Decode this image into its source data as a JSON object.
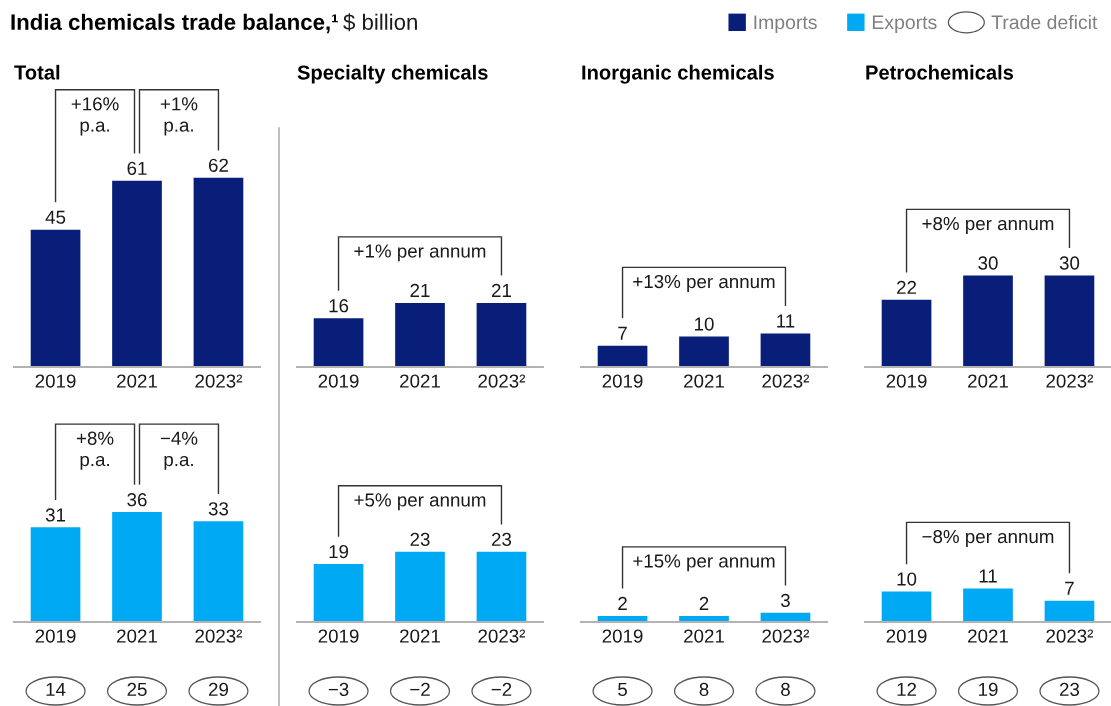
{
  "chart_data": [
    {
      "type": "other",
      "title": "India chemicals trade balance,¹",
      "subtitle": "$ billion"
    },
    {
      "type": "bar",
      "title": "Total",
      "categories": [
        "2019",
        "2021",
        "2023²"
      ],
      "series": [
        {
          "name": "Imports",
          "color": "#081e78",
          "values": [
            45,
            61,
            62
          ]
        }
      ],
      "data_labels": true,
      "legend": "top right",
      "annotations": [
        "+16%\np.a.",
        "+1%\np.a."
      ]
    },
    {
      "type": "bar",
      "title": "Specialty chemicals",
      "categories": [
        "2019",
        "2021",
        "2023²"
      ],
      "series": [
        {
          "color": "#081e78",
          "values": [
            16,
            21,
            21
          ]
        }
      ],
      "data_labels": true,
      "annotations": [
        "+1% per annum"
      ]
    },
    {
      "type": "bar",
      "title": "Inorganic chemicals",
      "categories": [
        "2019",
        "2021",
        "2023²"
      ],
      "series": [
        {
          "color": "#081e78",
          "values": [
            7,
            10,
            11
          ]
        }
      ],
      "data_labels": true,
      "annotations": [
        "+13% per annum"
      ]
    },
    {
      "type": "bar",
      "title": "Petrochemicals",
      "categories": [
        "2019",
        "2021",
        "2023²"
      ],
      "series": [
        {
          "color": "#081e78",
          "values": [
            22,
            30,
            30
          ]
        }
      ],
      "data_labels": true,
      "annotations": [
        "+8% per annum"
      ]
    },
    {
      "type": "bar",
      "categories": [
        "2019",
        "2021",
        "2023²"
      ],
      "series": [
        {
          "name": "Exports",
          "color": "#00a9f4",
          "values": [
            31,
            36,
            33
          ]
        }
      ],
      "data_labels": true,
      "legend": "top right",
      "annotations": [
        "+8%\np.a.",
        "−4%\np.a."
      ]
    },
    {
      "type": "bar",
      "categories": [
        "2019",
        "2021",
        "2023²"
      ],
      "series": [
        {
          "color": "#00a9f4",
          "values": [
            19,
            23,
            23
          ]
        }
      ],
      "data_labels": true,
      "annotations": [
        "+5% per annum"
      ]
    },
    {
      "type": "bar",
      "categories": [
        "2019",
        "2021",
        "2023²"
      ],
      "series": [
        {
          "color": "#00a9f4",
          "values": [
            2,
            2,
            3
          ]
        }
      ],
      "data_labels": true,
      "annotations": [
        "+15% per annum"
      ]
    },
    {
      "type": "bar",
      "categories": [
        "2019",
        "2021",
        "2023²"
      ],
      "series": [
        {
          "color": "#00a9f4",
          "values": [
            10,
            11,
            7
          ]
        }
      ],
      "data_labels": true,
      "annotations": [
        "−8% per annum"
      ]
    },
    {
      "type": "other",
      "categories": [
        null,
        null,
        null
      ],
      "series": [
        {
          "name": "Trade deficit",
          "values": [
            14,
            25,
            29
          ]
        }
      ],
      "data_labels": true,
      "legend": "top right"
    },
    {
      "type": "other",
      "categories": [
        null,
        null,
        null
      ],
      "series": [
        {
          "values": [
            -3,
            -2,
            -2
          ]
        }
      ],
      "data_labels": true
    },
    {
      "type": "other",
      "categories": [
        null,
        null,
        null
      ],
      "series": [
        {
          "values": [
            5,
            8,
            8
          ]
        }
      ],
      "data_labels": true
    },
    {
      "type": "other",
      "categories": [
        null,
        null,
        null
      ],
      "series": [
        {
          "values": [
            12,
            19,
            23
          ]
        }
      ],
      "data_labels": true
    }
  ]
}
